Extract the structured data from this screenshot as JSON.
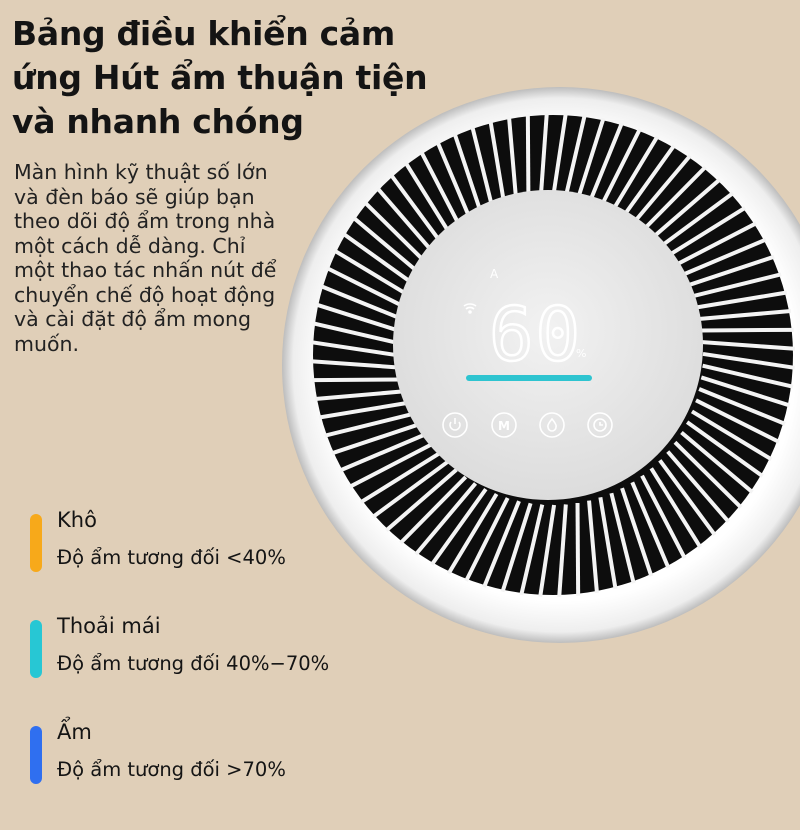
{
  "title_lines": [
    "Bảng điều khiển cảm",
    "ứng Hút ẩm thuận tiện",
    "và nhanh chóng"
  ],
  "description": "Màn hình kỹ thuật số lớn và đèn báo sẽ giúp bạn theo dõi độ ẩm trong nhà một cách dễ dàng. Chỉ một thao tác nhấn nút để chuyển chế độ hoạt động và cài đặt độ ẩm mong muốn.",
  "display": {
    "mode": "A",
    "humidity": "60",
    "unit": "%",
    "indicator_color": "#2ec4d0",
    "buttons": [
      "power-icon",
      "M",
      "droplet-icon",
      "timer-icon"
    ]
  },
  "legend": [
    {
      "label": "Khô",
      "detail": "Độ ẩm tương đối <40%",
      "color": "#f7a91a"
    },
    {
      "label": "Thoải mái",
      "detail": "Độ ẩm tương đối 40%−70%",
      "color": "#27c7d4"
    },
    {
      "label": "Ẩm",
      "detail": "Độ ẩm tương đối >70%",
      "color": "#2f6ff0"
    }
  ]
}
